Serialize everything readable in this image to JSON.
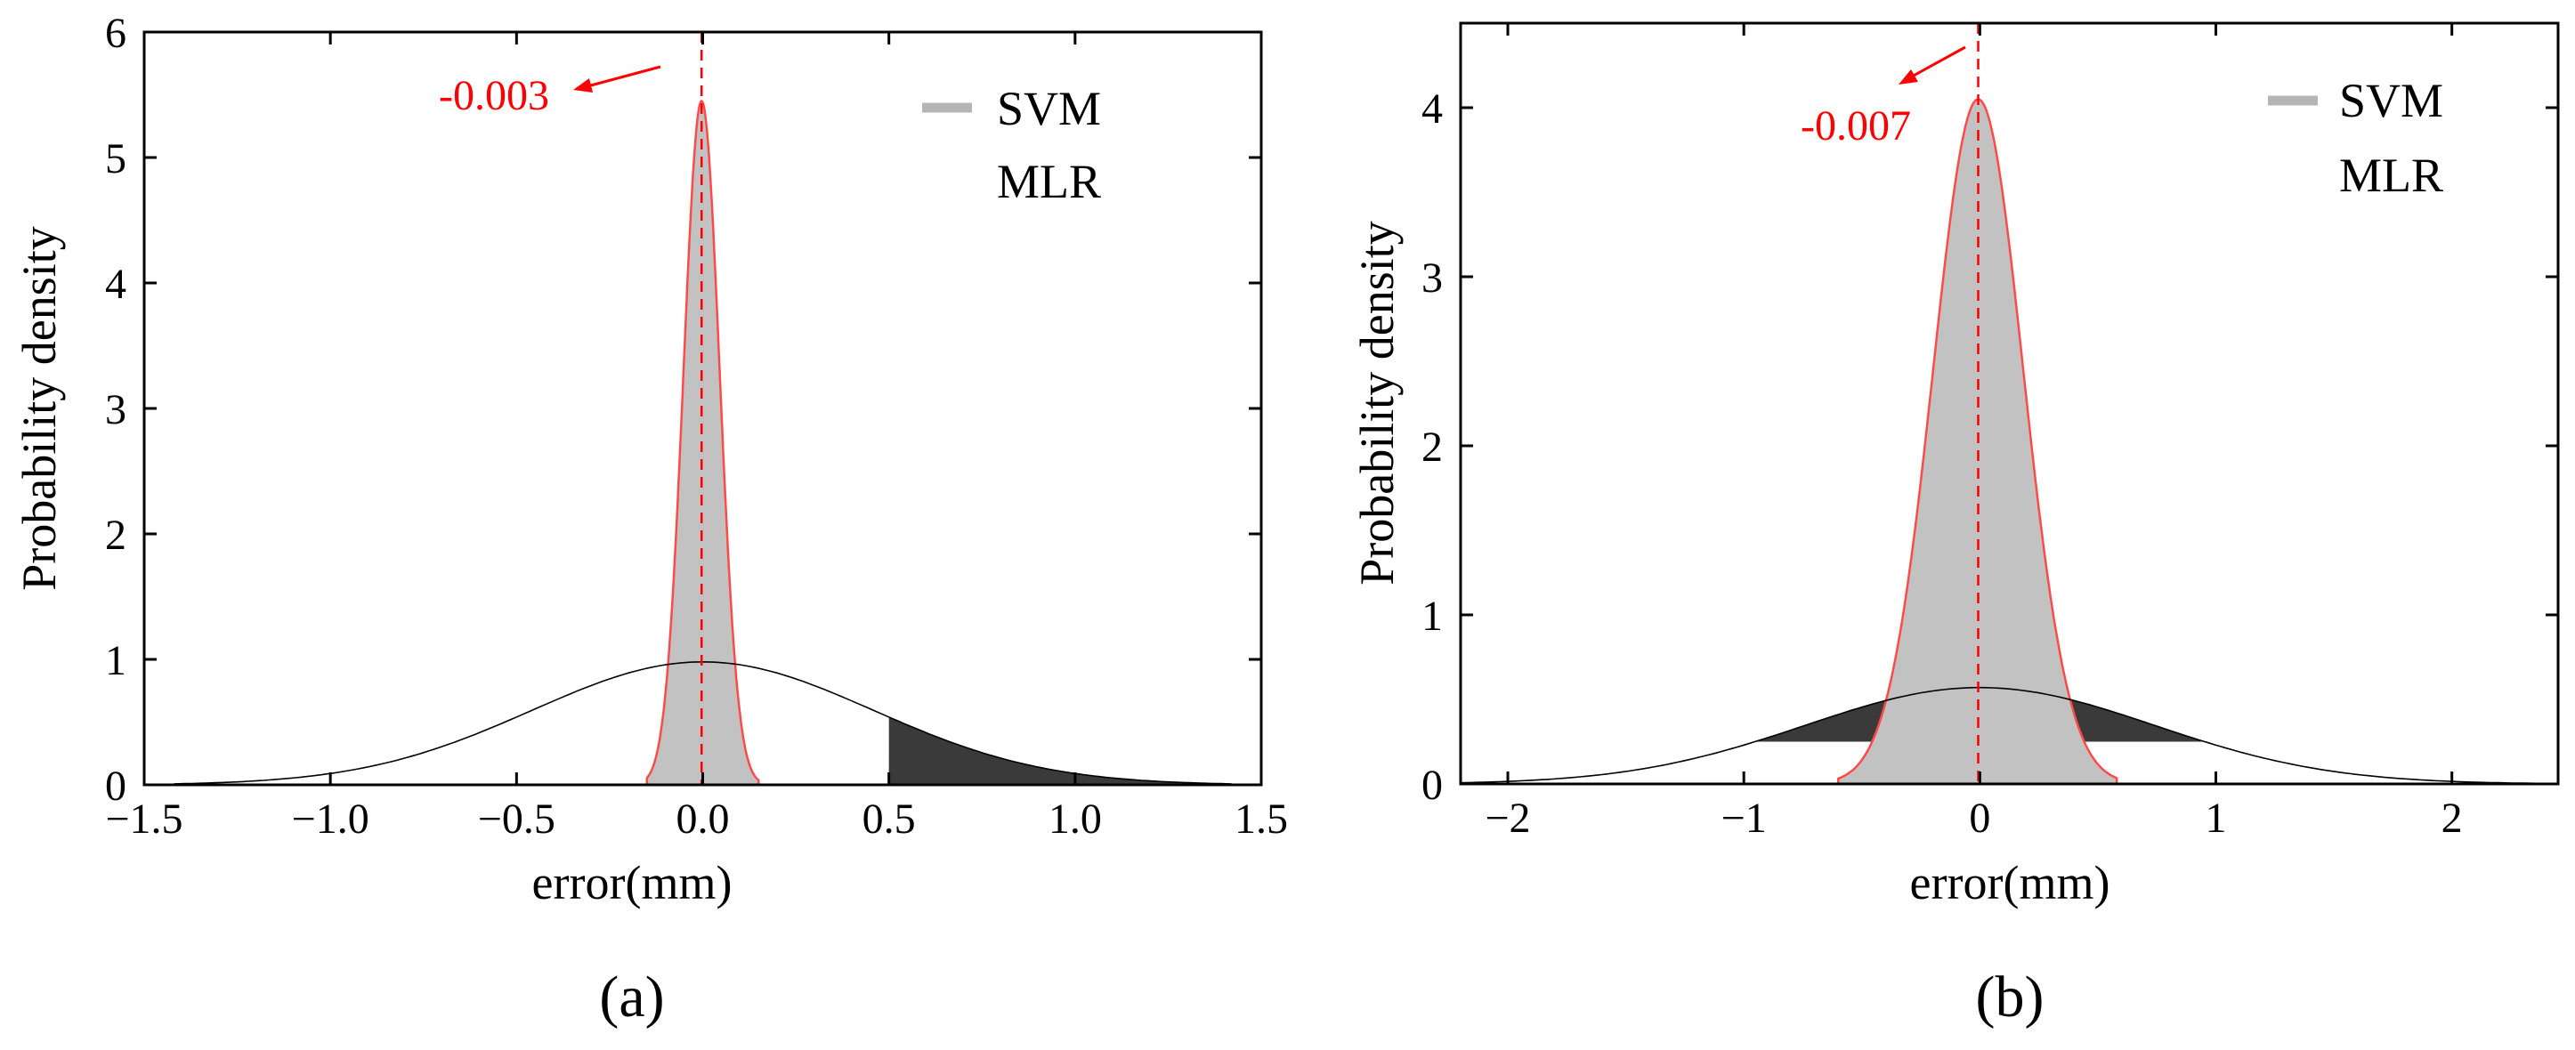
{
  "chart_data": [
    {
      "type": "area",
      "panel_label": "(a)",
      "title": "",
      "xlabel": "error(mm)",
      "ylabel": "Probability density",
      "xlim": [
        -1.5,
        1.5
      ],
      "ylim": [
        0,
        6
      ],
      "xticks": [
        -1.5,
        -1.0,
        -0.5,
        0.0,
        0.5,
        1.0,
        1.5
      ],
      "xtick_labels": [
        "−1.5",
        "−1.0",
        "−0.5",
        "0.0",
        "0.5",
        "1.0",
        "1.5"
      ],
      "yticks": [
        0,
        1,
        2,
        3,
        4,
        5,
        6
      ],
      "ytick_labels": [
        "0",
        "1",
        "2",
        "3",
        "4",
        "5",
        "6"
      ],
      "legend": [
        "SVM",
        "MLR"
      ],
      "legend_position": "top-right",
      "series": [
        {
          "name": "SVM",
          "distribution": "normal",
          "mean": -0.003,
          "peak_density": 5.45,
          "x_range": [
            -0.15,
            0.15
          ]
        },
        {
          "name": "MLR",
          "distribution": "normal",
          "mean": 0.0,
          "peak_density": 0.98,
          "x_range": [
            -1.42,
            1.42
          ],
          "shaded_from": 0.5
        }
      ],
      "annotation": {
        "text": "-0.003",
        "x": -0.003
      }
    },
    {
      "type": "area",
      "panel_label": "(b)",
      "title": "",
      "xlabel": "error(mm)",
      "ylabel": "Probability density",
      "xlim": [
        -2.2,
        2.45
      ],
      "ylim": [
        0,
        4.5
      ],
      "xticks": [
        -2,
        -1,
        0,
        1,
        2
      ],
      "xtick_labels": [
        "−2",
        "−1",
        "0",
        "1",
        "2"
      ],
      "yticks": [
        0,
        1,
        2,
        3,
        4
      ],
      "ytick_labels": [
        "0",
        "1",
        "2",
        "3",
        "4"
      ],
      "legend": [
        "SVM",
        "MLR"
      ],
      "legend_position": "top-right",
      "series": [
        {
          "name": "SVM",
          "distribution": "normal",
          "mean": -0.007,
          "peak_density": 4.05,
          "x_range": [
            -0.6,
            0.58
          ]
        },
        {
          "name": "MLR",
          "distribution": "normal",
          "mean": 0.0,
          "peak_density": 0.57,
          "x_range": [
            -2.2,
            2.4
          ],
          "shaded_band": [
            -1.15,
            1.15
          ],
          "band_floor": 0.25
        }
      ],
      "annotation": {
        "text": "-0.007",
        "x": -0.007
      }
    }
  ]
}
